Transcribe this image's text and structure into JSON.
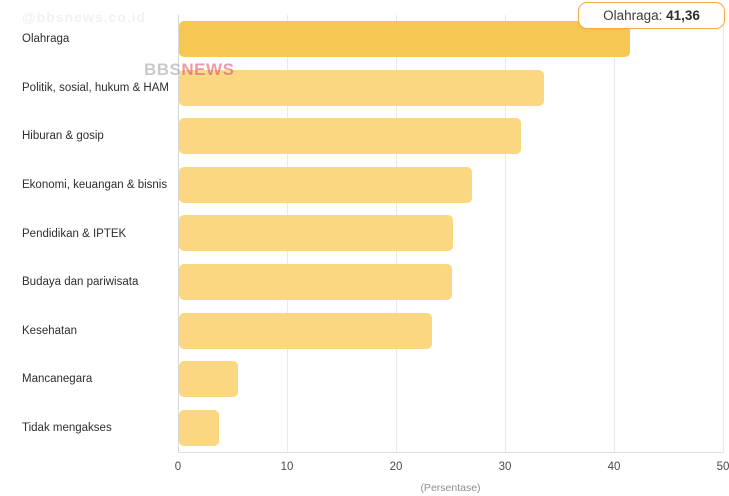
{
  "watermarks": {
    "handle": "@bbsnews.co.id",
    "logo_part1": "BBS",
    "logo_part2": "NEWS"
  },
  "tooltip": {
    "label": "Olahraga: ",
    "value": "41,36"
  },
  "chart_data": {
    "type": "bar",
    "orientation": "horizontal",
    "title": "",
    "xlabel": "(Persentase)",
    "ylabel": "",
    "xlim": [
      0,
      50
    ],
    "x_ticks": [
      0,
      10,
      20,
      30,
      40,
      50
    ],
    "grid": "vertical",
    "categories": [
      "Olahraga",
      "Politik, sosial, hukum & HAM",
      "Hiburan & gosip",
      "Ekonomi, keuangan & bisnis",
      "Pendidikan & IPTEK",
      "Budaya dan pariwisata",
      "Kesehatan",
      "Mancanegara",
      "Tidak mengakses"
    ],
    "values": [
      41.36,
      33.5,
      31.4,
      26.9,
      25.1,
      25.0,
      23.2,
      5.4,
      3.7
    ],
    "highlighted_index": 0,
    "bar_color": "#FAD780",
    "bar_color_highlight": "#F7C753",
    "gridline_color": "#e9e9e9"
  }
}
